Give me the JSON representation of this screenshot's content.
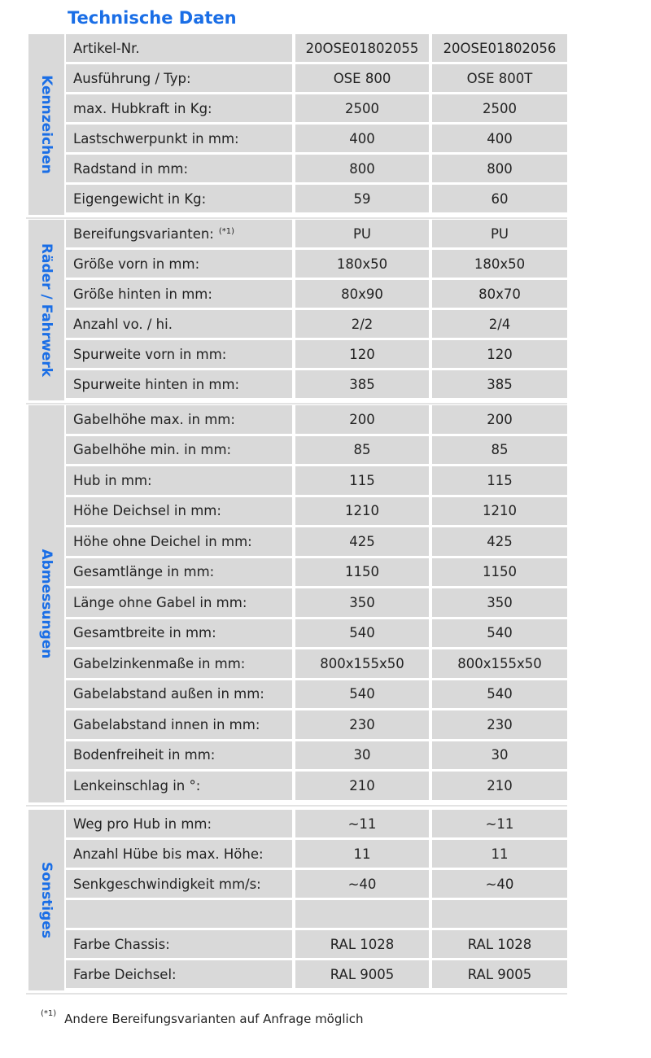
{
  "title": "Technische Daten",
  "groups": [
    {
      "label": "Kennzeichen",
      "rows": [
        {
          "label": "Artikel-Nr.",
          "v1": "20OSE01802055",
          "v2": "20OSE01802056"
        },
        {
          "label": "Ausführung / Typ:",
          "v1": "OSE 800",
          "v2": "OSE 800T"
        },
        {
          "label": "max. Hubkraft in Kg:",
          "v1": "2500",
          "v2": "2500"
        },
        {
          "label": "Lastschwerpunkt in mm:",
          "v1": "400",
          "v2": "400"
        },
        {
          "label": "Radstand in mm:",
          "v1": "800",
          "v2": "800"
        },
        {
          "label": "Eigengewicht in Kg:",
          "v1": "59",
          "v2": "60"
        }
      ]
    },
    {
      "label": "Räder / Fahrwerk",
      "rows": [
        {
          "label": "Bereifungsvarianten:",
          "note": "(*1)",
          "v1": "PU",
          "v2": "PU"
        },
        {
          "label": "Größe vorn in mm:",
          "v1": "180x50",
          "v2": "180x50"
        },
        {
          "label": "Größe hinten in mm:",
          "v1": "80x90",
          "v2": "80x70"
        },
        {
          "label": "Anzahl vo. / hi.",
          "v1": "2/2",
          "v2": "2/4"
        },
        {
          "label": "Spurweite vorn in mm:",
          "v1": "120",
          "v2": "120"
        },
        {
          "label": "Spurweite hinten in mm:",
          "v1": "385",
          "v2": "385"
        }
      ]
    },
    {
      "label": "Abmessungen",
      "rows": [
        {
          "label": "Gabelhöhe max. in mm:",
          "v1": "200",
          "v2": "200"
        },
        {
          "label": "Gabelhöhe min. in mm:",
          "v1": "85",
          "v2": "85"
        },
        {
          "label": "Hub in mm:",
          "v1": "115",
          "v2": "115"
        },
        {
          "label": "Höhe Deichsel in mm:",
          "v1": "1210",
          "v2": "1210"
        },
        {
          "label": "Höhe ohne Deichel in mm:",
          "v1": "425",
          "v2": "425"
        },
        {
          "label": "Gesamtlänge in mm:",
          "v1": "1150",
          "v2": "1150"
        },
        {
          "label": "Länge ohne Gabel in mm:",
          "v1": "350",
          "v2": "350"
        },
        {
          "label": "Gesamtbreite in mm:",
          "v1": "540",
          "v2": "540"
        },
        {
          "label": "Gabelzinkenmaße in mm:",
          "v1": "800x155x50",
          "v2": "800x155x50"
        },
        {
          "label": "Gabelabstand außen in mm:",
          "v1": "540",
          "v2": "540"
        },
        {
          "label": "Gabelabstand innen in mm:",
          "v1": "230",
          "v2": "230"
        },
        {
          "label": "Bodenfreiheit in mm:",
          "v1": "30",
          "v2": "30"
        },
        {
          "label": "Lenkeinschlag in °:",
          "v1": "210",
          "v2": "210"
        }
      ]
    },
    {
      "label": "Sonstiges",
      "rows": [
        {
          "label": "Weg pro Hub in mm:",
          "v1": "~11",
          "v2": "~11"
        },
        {
          "label": "Anzahl Hübe bis max. Höhe:",
          "v1": "11",
          "v2": "11"
        },
        {
          "label": "Senkgeschwindigkeit mm/s:",
          "v1": "~40",
          "v2": "~40"
        },
        {
          "label": "",
          "v1": "",
          "v2": ""
        },
        {
          "label": "Farbe Chassis:",
          "v1": "RAL 1028",
          "v2": "RAL 1028"
        },
        {
          "label": "Farbe Deichsel:",
          "v1": "RAL 9005",
          "v2": "RAL 9005"
        }
      ]
    }
  ],
  "footnote": {
    "mark": "(*1)",
    "text": "Andere Bereifungsvarianten auf Anfrage möglich"
  }
}
